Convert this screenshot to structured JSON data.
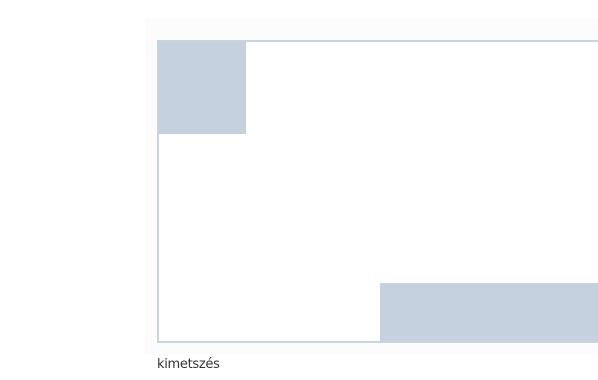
{
  "caption": "kimetszés",
  "colors": {
    "frame": "#c8d4e0",
    "cut_fill": "#c5d1de",
    "backdrop": "#fcfcfd"
  }
}
